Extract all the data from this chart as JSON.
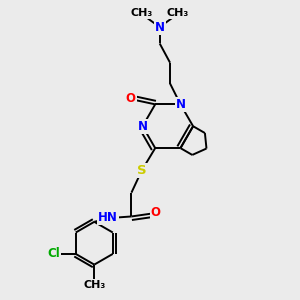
{
  "background_color": "#ebebeb",
  "atom_colors": {
    "N": "#0000ff",
    "O": "#ff0000",
    "S": "#cccc00",
    "Cl": "#00aa00",
    "C": "#000000",
    "H": "#555555"
  },
  "bond_color": "#000000",
  "bond_lw": 1.4,
  "font_size": 8.5,
  "fig_width": 3.0,
  "fig_height": 3.0,
  "dpi": 100,
  "xlim": [
    0,
    10
  ],
  "ylim": [
    0,
    10
  ]
}
